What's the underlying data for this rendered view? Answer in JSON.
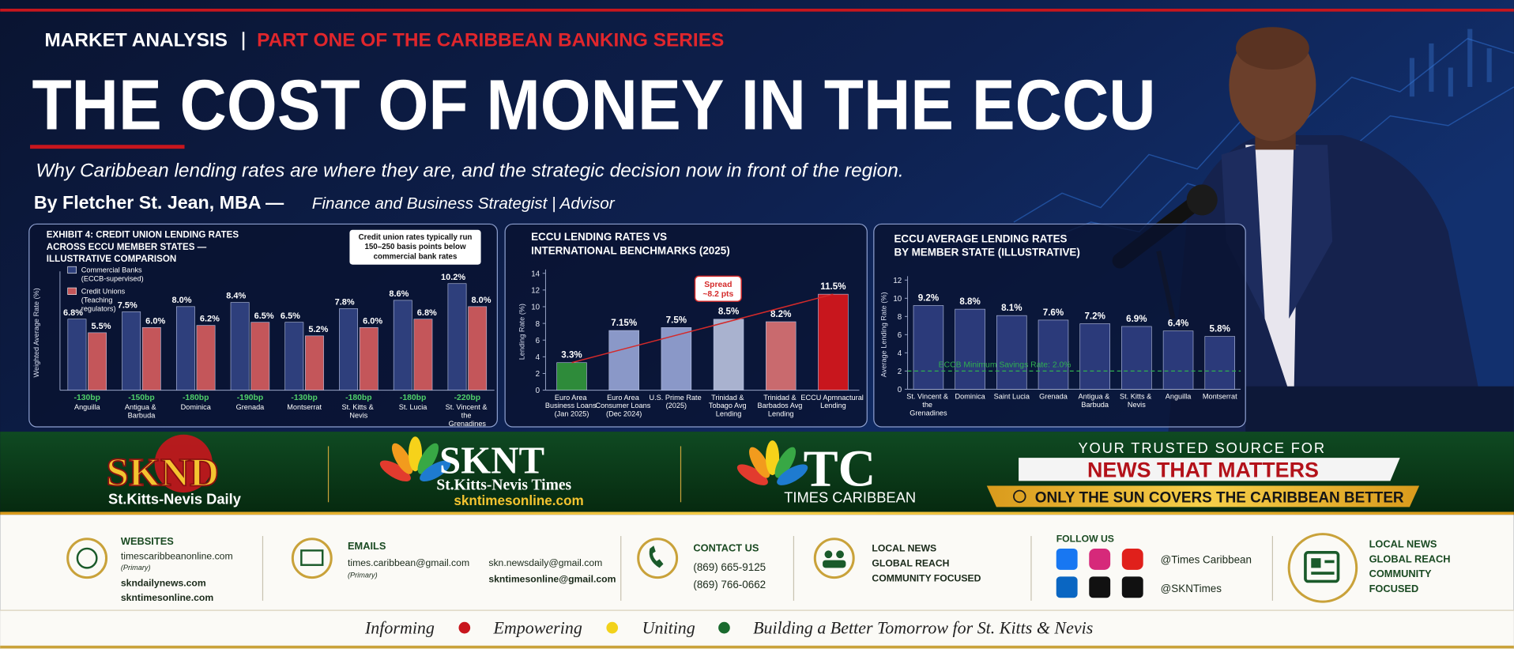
{
  "header": {
    "kicker": "MARKET ANALYSIS",
    "series": "PART ONE OF THE CARIBBEAN BANKING SERIES",
    "title": "THE COST OF MONEY IN THE ECCU",
    "subtitle": "Why Caribbean lending rates are where they are, and the strategic decision now in front of the region.",
    "byline": "By Fletcher St. Jean, MBA —",
    "byline_role": "Finance and Business Strategist | Advisor"
  },
  "chart_data": [
    {
      "type": "bar",
      "title": [
        "EXHIBIT 4: CREDIT UNION LENDING RATES",
        "ACROSS ECCU MEMBER STATES —",
        "ILLUSTRATIVE COMPARISON"
      ],
      "note": [
        "Credit union rates typically run",
        "150–250 basis points below",
        "commercial bank rates"
      ],
      "ylabel": "Weighted Average Rate (%)",
      "categories": [
        "Anguilla",
        "Antigua & Barbuda",
        "Dominica",
        "Grenada",
        "Montserrat",
        "St. Kitts & Nevis",
        "St. Lucia",
        "St. Vincent & the Grenadines"
      ],
      "series": [
        {
          "name": "Commercial Banks (ECCB-supervised)",
          "color": "#2e3f7c",
          "values": [
            6.8,
            7.5,
            8.0,
            8.4,
            6.5,
            7.8,
            8.6,
            10.2
          ],
          "value_labels": [
            "6.8%",
            "7.5%",
            "8.0%",
            "8.4%",
            "6.5%",
            "7.8%",
            "8.6%",
            "10.2%"
          ]
        },
        {
          "name": "Credit Unions (Teaching regulators)",
          "color": "#c4565a",
          "values": [
            5.5,
            6.0,
            6.2,
            6.5,
            5.2,
            6.0,
            6.8,
            8.0
          ],
          "value_labels": [
            "5.5%",
            "6.0%",
            "6.2%",
            "6.5%",
            "5.2%",
            "6.0%",
            "6.8%",
            "8.0%"
          ]
        }
      ],
      "spread_labels": [
        "-130bp",
        "-150bp",
        "-180bp",
        "-190bp",
        "-130bp",
        "-180bp",
        "-180bp",
        "-220bp"
      ],
      "ylim": [
        0,
        11
      ],
      "legend": "top-left"
    },
    {
      "type": "bar",
      "title": [
        "ECCU LENDING RATES VS",
        "INTERNATIONAL BENCHMARKS (2025)"
      ],
      "ylabel": "Lending Rate (%)",
      "categories": [
        "Euro Area Business Loans (Jan 2025)",
        "Euro Area Consumer Loans (Dec 2024)",
        "U.S. Prime Rate (2025)",
        "Trinidad & Tobago Avg Lending",
        "Trinidad & Barbados Avg Lending",
        "ECCU Apmnactural Lending"
      ],
      "values": [
        3.3,
        7.15,
        7.5,
        8.5,
        8.2,
        11.5
      ],
      "value_labels": [
        "3.3%",
        "7.15%",
        "7.5%",
        "8.5%",
        "8.2%",
        "11.5%"
      ],
      "colors": [
        "#2e8b3a",
        "#8a98c8",
        "#8a98c8",
        "#a9b2cf",
        "#c96a6e",
        "#c8161d"
      ],
      "ylim": [
        0,
        14
      ],
      "yticks": [
        0,
        2,
        4,
        6,
        8,
        10,
        12,
        14
      ],
      "callout": [
        "Spread",
        "~8.2 pts"
      ],
      "trend_line_color": "#d42a2a"
    },
    {
      "type": "bar",
      "title": [
        "ECCU AVERAGE LENDING RATES",
        "BY MEMBER STATE (ILLUSTRATIVE)"
      ],
      "ylabel": "Average Lending Rate (%)",
      "categories": [
        "St. Vincent & the Grenadines",
        "Dominica",
        "Saint Lucia",
        "Grenada",
        "Antigua & Barbuda",
        "St. Kitts & Nevis",
        "Anguilla",
        "Montserrat"
      ],
      "values": [
        9.2,
        8.8,
        8.1,
        7.6,
        7.2,
        6.9,
        6.4,
        5.8
      ],
      "value_labels": [
        "9.2%",
        "8.8%",
        "8.1%",
        "7.6%",
        "7.2%",
        "6.9%",
        "6.4%",
        "5.8%"
      ],
      "color": "#2b3a7a",
      "ylim": [
        0,
        12
      ],
      "yticks": [
        0,
        2,
        4,
        6,
        8,
        10,
        12
      ],
      "reference_line": {
        "value": 2.0,
        "label": "ECCB Minimum Savings Rate: 2.0%",
        "color": "#2fb04f"
      }
    }
  ],
  "brands": {
    "sknd": {
      "name": "SKND",
      "tagline": "St.Kitts-Nevis Daily"
    },
    "sknt": {
      "name": "SKNT",
      "tagline": "St.Kitts-Nevis Times",
      "url": "skntimesonline.com"
    },
    "tc": {
      "name": "TC",
      "tagline": "TIMES CARIBBEAN"
    },
    "slogan": {
      "lead": "YOUR TRUSTED SOURCE FOR",
      "headline": "NEWS THAT MATTERS",
      "banner": "ONLY THE SUN COVERS THE CARIBBEAN BETTER"
    }
  },
  "contacts": {
    "websites": {
      "heading": "WEBSITES",
      "primary": "timescaribbeanonline.com",
      "primary_note": "(Primary)",
      "others": [
        "skndailynews.com",
        "skntimesonline.com"
      ]
    },
    "emails": {
      "heading": "EMAILS",
      "primary": "times.caribbean@gmail.com",
      "primary_note": "(Primary)",
      "others": [
        "skn.newsdaily@gmail.com",
        "skntimesonline@gmail.com"
      ]
    },
    "phone": {
      "heading": "CONTACT US",
      "numbers": [
        "(869) 665-9125",
        "(869) 766-0662"
      ]
    },
    "mission": [
      "LOCAL NEWS",
      "GLOBAL REACH",
      "COMMUNITY FOCUSED"
    ],
    "social": {
      "heading": "FOLLOW US",
      "handles": [
        "@Times Caribbean",
        "@SKNTimes"
      ]
    },
    "mission_badge": [
      "LOCAL NEWS",
      "GLOBAL REACH",
      "COMMUNITY",
      "FOCUSED"
    ]
  },
  "tagline": [
    "Informing",
    "Empowering",
    "Uniting",
    "Building a Better Tomorrow for St. Kitts & Nevis"
  ]
}
